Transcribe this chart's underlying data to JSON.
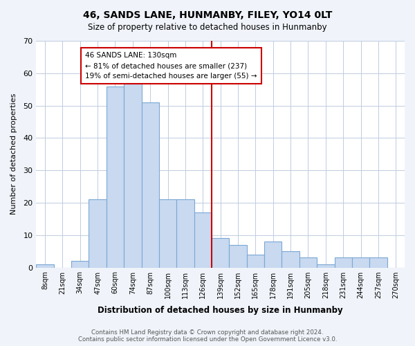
{
  "title": "46, SANDS LANE, HUNMANBY, FILEY, YO14 0LT",
  "subtitle": "Size of property relative to detached houses in Hunmanby",
  "xlabel": "Distribution of detached houses by size in Hunmanby",
  "ylabel": "Number of detached properties",
  "bin_labels": [
    "8sqm",
    "21sqm",
    "34sqm",
    "47sqm",
    "60sqm",
    "74sqm",
    "87sqm",
    "100sqm",
    "113sqm",
    "126sqm",
    "139sqm",
    "152sqm",
    "165sqm",
    "178sqm",
    "191sqm",
    "205sqm",
    "218sqm",
    "231sqm",
    "244sqm",
    "257sqm",
    "270sqm"
  ],
  "bar_values": [
    1,
    0,
    2,
    21,
    56,
    58,
    51,
    21,
    21,
    17,
    9,
    7,
    4,
    8,
    5,
    3,
    1,
    3,
    3,
    3,
    0
  ],
  "bar_color": "#c8d9f0",
  "bar_edge_color": "#7ba7d4",
  "vline_x": 9.5,
  "vline_color": "#cc0000",
  "annotation_text": "46 SANDS LANE: 130sqm\n← 81% of detached houses are smaller (237)\n19% of semi-detached houses are larger (55) →",
  "annotation_box_edge": "#cc0000",
  "ylim": [
    0,
    70
  ],
  "yticks": [
    0,
    10,
    20,
    30,
    40,
    50,
    60,
    70
  ],
  "footer_text": "Contains HM Land Registry data © Crown copyright and database right 2024.\nContains public sector information licensed under the Open Government Licence v3.0.",
  "bg_color": "#f0f4fa",
  "plot_bg_color": "#ffffff",
  "grid_color": "#c0cce0"
}
